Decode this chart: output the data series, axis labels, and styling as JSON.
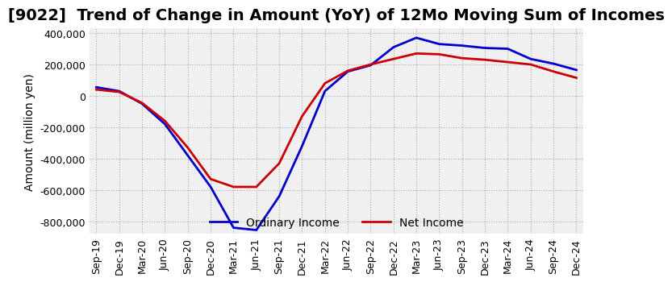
{
  "title": "[9022]  Trend of Change in Amount (YoY) of 12Mo Moving Sum of Incomes",
  "ylabel": "Amount (million yen)",
  "ylim": [
    -880000,
    430000
  ],
  "yticks": [
    -800000,
    -600000,
    -400000,
    -200000,
    0,
    200000,
    400000
  ],
  "x_labels": [
    "Sep-19",
    "Dec-19",
    "Mar-20",
    "Jun-20",
    "Sep-20",
    "Dec-20",
    "Mar-21",
    "Jun-21",
    "Sep-21",
    "Dec-21",
    "Mar-22",
    "Jun-22",
    "Sep-22",
    "Dec-22",
    "Mar-23",
    "Jun-23",
    "Sep-23",
    "Dec-23",
    "Mar-24",
    "Jun-24",
    "Sep-24",
    "Dec-24"
  ],
  "ordinary_income": [
    55000,
    30000,
    -50000,
    -180000,
    -380000,
    -580000,
    -840000,
    -855000,
    -640000,
    -320000,
    30000,
    155000,
    195000,
    310000,
    370000,
    330000,
    320000,
    305000,
    300000,
    235000,
    205000,
    165000
  ],
  "net_income": [
    40000,
    25000,
    -45000,
    -160000,
    -330000,
    -530000,
    -580000,
    -580000,
    -430000,
    -130000,
    80000,
    160000,
    200000,
    235000,
    270000,
    265000,
    240000,
    230000,
    215000,
    200000,
    155000,
    115000
  ],
  "ordinary_color": "#0000cc",
  "net_color": "#cc0000",
  "grid_color": "#aaaaaa",
  "plot_bg_color": "#f0f0f0",
  "background_color": "#ffffff",
  "legend_labels": [
    "Ordinary Income",
    "Net Income"
  ],
  "title_fontsize": 14,
  "label_fontsize": 10,
  "tick_fontsize": 9
}
